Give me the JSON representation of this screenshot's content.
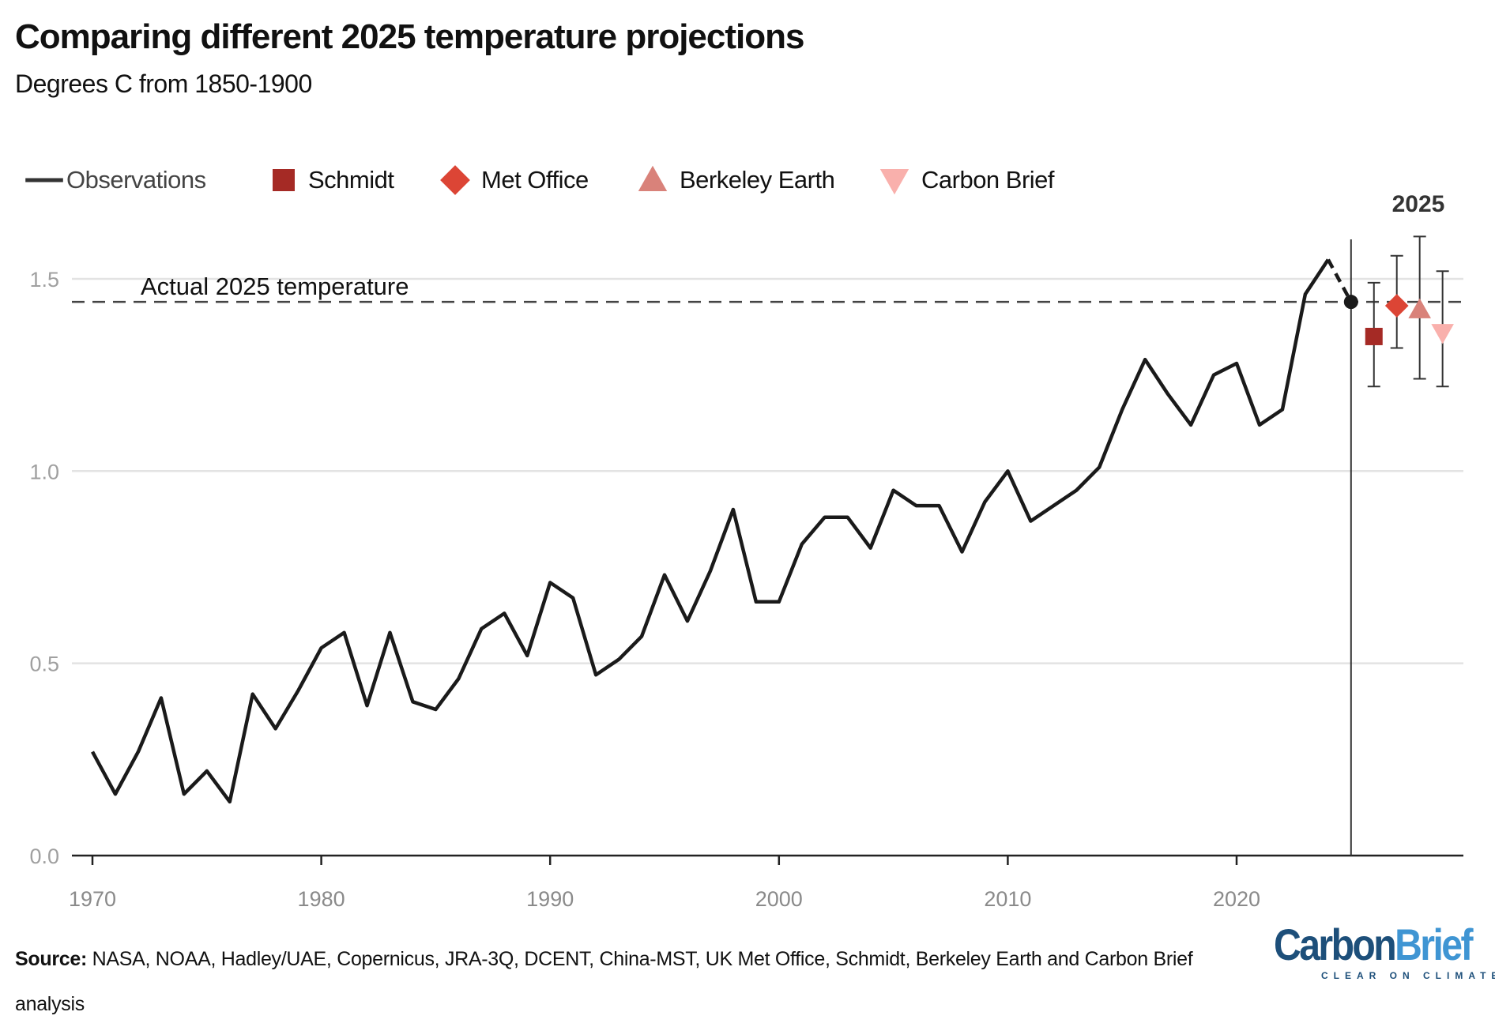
{
  "header": {
    "title": "Comparing different 2025 temperature projections",
    "subtitle": "Degrees C from 1850-1900"
  },
  "legend": {
    "placement": "top-left",
    "items": [
      {
        "label": "Observations",
        "marker": "line",
        "color": "#333333"
      },
      {
        "label": "Schmidt",
        "marker": "square",
        "color": "#a52a25"
      },
      {
        "label": "Met Office",
        "marker": "diamond",
        "color": "#dc4535"
      },
      {
        "label": "Berkeley Earth",
        "marker": "triangle-up",
        "color": "#d9827a"
      },
      {
        "label": "Carbon Brief",
        "marker": "triangle-down",
        "color": "#f9b0ac"
      }
    ]
  },
  "chart_data": {
    "type": "line",
    "title": "Comparing different 2025 temperature projections",
    "subtitle": "Degrees C from 1850-1900",
    "xlim": [
      1970,
      2029.8
    ],
    "ylim": [
      0,
      1.6
    ],
    "x_ticks": [
      "1970",
      "1980",
      "1990",
      "2000",
      "2010",
      "2020"
    ],
    "y_ticks": [
      "0.0",
      "0.5",
      "1.0",
      "1.5"
    ],
    "grid": "horizontal",
    "series": [
      {
        "name": "Observations",
        "color": "#1a1a1a",
        "x": [
          1970,
          1971,
          1972,
          1973,
          1974,
          1975,
          1976,
          1977,
          1978,
          1979,
          1980,
          1981,
          1982,
          1983,
          1984,
          1985,
          1986,
          1987,
          1988,
          1989,
          1990,
          1991,
          1992,
          1993,
          1994,
          1995,
          1996,
          1997,
          1998,
          1999,
          2000,
          2001,
          2002,
          2003,
          2004,
          2005,
          2006,
          2007,
          2008,
          2009,
          2010,
          2011,
          2012,
          2013,
          2014,
          2015,
          2016,
          2017,
          2018,
          2019,
          2020,
          2021,
          2022,
          2023,
          2024,
          2025
        ],
        "values": [
          0.27,
          0.16,
          0.27,
          0.41,
          0.16,
          0.22,
          0.14,
          0.42,
          0.33,
          0.43,
          0.54,
          0.58,
          0.39,
          0.58,
          0.4,
          0.38,
          0.46,
          0.59,
          0.63,
          0.52,
          0.71,
          0.67,
          0.47,
          0.51,
          0.57,
          0.73,
          0.61,
          0.74,
          0.9,
          0.66,
          0.66,
          0.81,
          0.88,
          0.88,
          0.8,
          0.95,
          0.91,
          0.91,
          0.79,
          0.92,
          1.0,
          0.87,
          0.91,
          0.95,
          1.01,
          1.16,
          1.29,
          1.2,
          1.12,
          1.25,
          1.28,
          1.12,
          1.16,
          1.46,
          1.55,
          1.44
        ],
        "dashed_last_segment": true
      }
    ],
    "projections": [
      {
        "name": "Schmidt",
        "marker": "square",
        "color": "#a52a25",
        "value": 1.35,
        "low": 1.22,
        "high": 1.49
      },
      {
        "name": "Met Office",
        "marker": "diamond",
        "color": "#dc4535",
        "value": 1.43,
        "low": 1.32,
        "high": 1.56
      },
      {
        "name": "Berkeley Earth",
        "marker": "triangle-up",
        "color": "#d9827a",
        "value": 1.42,
        "low": 1.24,
        "high": 1.61
      },
      {
        "name": "Carbon Brief",
        "marker": "triangle-down",
        "color": "#f9b0ac",
        "value": 1.36,
        "low": 1.22,
        "high": 1.52
      }
    ],
    "reference_line": {
      "label": "Actual 2025 temperature",
      "value": 1.44
    },
    "vertical_marker": {
      "label": "2025",
      "x": 2025
    }
  },
  "footer": {
    "source_label": "Source:",
    "source_text": " NASA, NOAA, Hadley/UAE, Copernicus, JRA-3Q, DCENT, China-MST, UK Met Office, Schmidt, Berkeley Earth and Carbon Brief analysis",
    "logo_text": "CarbonBrief",
    "logo_tagline": "CLEAR ON CLIMATE",
    "logo_colors": {
      "carbon": "#1d4f7a",
      "brief": "#3f95d3"
    }
  }
}
